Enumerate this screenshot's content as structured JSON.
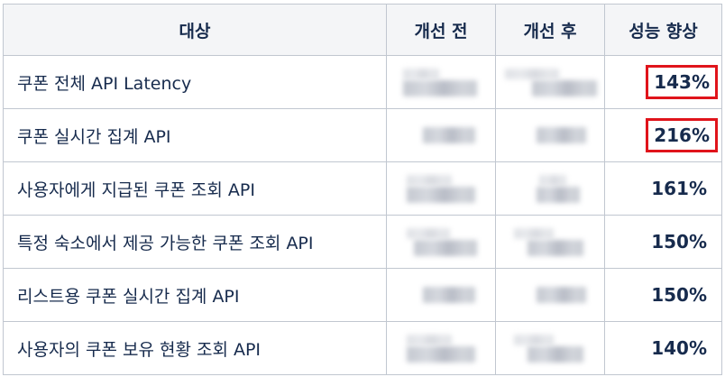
{
  "table": {
    "headers": [
      "대상",
      "개선 전",
      "개선 후",
      "성능 향상"
    ],
    "rows": [
      {
        "api": "쿠폰 전체 API Latency",
        "improvement": "143%",
        "highlighted": true
      },
      {
        "api": "쿠폰 실시간 집계 API",
        "improvement": "216%",
        "highlighted": true
      },
      {
        "api": "사용자에게 지급된 쿠폰 조회 API",
        "improvement": "161%",
        "highlighted": false
      },
      {
        "api": "특정 숙소에서 제공 가능한 쿠폰 조회 API",
        "improvement": "150%",
        "highlighted": false
      },
      {
        "api": "리스트용 쿠폰 실시간 집계 API",
        "improvement": "150%",
        "highlighted": false
      },
      {
        "api": "사용자의 쿠폰 보유 현황 조회 API",
        "improvement": "140%",
        "highlighted": false
      }
    ]
  },
  "colors": {
    "highlight_border": "#e0141b",
    "text": "#172b4d",
    "header_bg": "#f4f5f7",
    "grid": "#c1c7d0"
  }
}
